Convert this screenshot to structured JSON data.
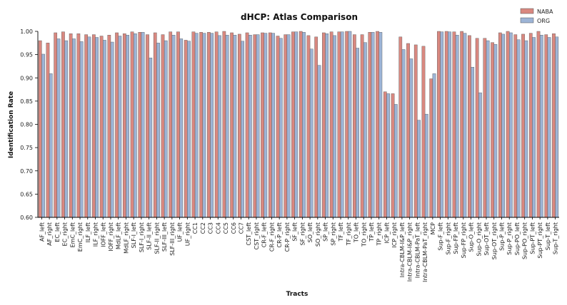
{
  "colors": {
    "NABA": "#d98880",
    "ORG": "#9db4d6",
    "bar_edge": "#555555",
    "axis": "#000000"
  },
  "chart_data": {
    "type": "bar",
    "title": "dHCP: Atlas Comparison",
    "xlabel": "Tracts",
    "ylabel": "Identification Rate",
    "ylim": [
      0.6,
      1.0
    ],
    "yticks": [
      0.6,
      0.65,
      0.7,
      0.75,
      0.8,
      0.85,
      0.9,
      0.95,
      1.0
    ],
    "ytick_labels": [
      "0.60",
      "0.65",
      "0.70",
      "0.75",
      "0.80",
      "0.85",
      "0.90",
      "0.95",
      "1.00"
    ],
    "legend_position": "top-right",
    "grid": false,
    "categories": [
      "AF_left",
      "AF_right",
      "EC_left",
      "EC_right",
      "EmC_left",
      "EmC_right",
      "ILF_left",
      "ILF_right",
      "IOFF_left",
      "IOFF_right",
      "MdLF_left",
      "MdLF_right",
      "SLF-I_left",
      "SLF-I_right",
      "SLF-II_left",
      "SLF-II_right",
      "SLF-III_left",
      "SLF-III_right",
      "UF_left",
      "UF_right",
      "CC1",
      "CC2",
      "CC3",
      "CC4",
      "CC5",
      "CC6",
      "CC7",
      "CST_left",
      "CST_right",
      "CR-F_left",
      "CR-F_right",
      "CR-P_left",
      "CR-P_right",
      "SF_left",
      "SF_right",
      "SO_left",
      "SO_right",
      "SP_left",
      "SP_right",
      "TF_left",
      "TF_right",
      "TO_left",
      "TO_right",
      "TP_left",
      "TP_right",
      "ICP_left",
      "ICP_right",
      "Intra-CBLM-I&P_left",
      "Intra-CBLM-I&P_right",
      "Intra-CBLM-PaT_left",
      "Intra-CBLM-PaT_right",
      "MCP",
      "Sup-F_left",
      "Sup-F_right",
      "Sup-FP_left",
      "Sup-FP_right",
      "Sup-O_left",
      "Sup-O_right",
      "Sup-OT_left",
      "Sup-OT_right",
      "Sup-P_left",
      "Sup-P_right",
      "Sup-PO_left",
      "Sup-PO_right",
      "Sup-PT_left",
      "Sup-PT_right",
      "Sup-T_left",
      "Sup-T_right"
    ],
    "series": [
      {
        "name": "NABA",
        "values": [
          0.98,
          0.975,
          0.997,
          0.999,
          0.995,
          0.995,
          0.993,
          0.993,
          0.99,
          0.992,
          0.997,
          0.995,
          0.999,
          0.998,
          0.993,
          0.997,
          0.993,
          0.999,
          0.999,
          0.981,
          0.999,
          0.998,
          0.998,
          0.999,
          1.0,
          0.997,
          0.994,
          0.997,
          0.993,
          0.997,
          0.997,
          0.99,
          0.993,
          0.999,
          1.0,
          0.991,
          0.988,
          0.997,
          0.999,
          0.999,
          1.0,
          0.993,
          0.993,
          0.998,
          1.0,
          0.87,
          0.866,
          0.988,
          0.974,
          0.971,
          0.968,
          0.898,
          1.0,
          1.0,
          0.999,
          1.0,
          0.991,
          0.985,
          0.985,
          0.976,
          0.997,
          1.0,
          0.993,
          0.994,
          0.996,
          1.0,
          0.993,
          0.995
        ]
      },
      {
        "name": "ORG",
        "values": [
          0.951,
          0.909,
          0.984,
          0.98,
          0.984,
          0.978,
          0.988,
          0.987,
          0.981,
          0.977,
          0.99,
          0.992,
          0.995,
          0.998,
          0.943,
          0.975,
          0.98,
          0.992,
          0.984,
          0.979,
          0.996,
          0.996,
          0.996,
          0.991,
          0.992,
          0.992,
          0.979,
          0.992,
          0.993,
          0.996,
          0.996,
          0.985,
          0.993,
          0.999,
          0.998,
          0.962,
          0.927,
          0.995,
          0.991,
          0.999,
          1.0,
          0.964,
          0.976,
          0.998,
          0.998,
          0.866,
          0.843,
          0.961,
          0.941,
          0.809,
          0.822,
          0.909,
          0.999,
          0.999,
          0.992,
          0.996,
          0.923,
          0.868,
          0.98,
          0.972,
          0.994,
          0.997,
          0.982,
          0.98,
          0.987,
          0.992,
          0.987,
          0.988
        ]
      }
    ]
  }
}
